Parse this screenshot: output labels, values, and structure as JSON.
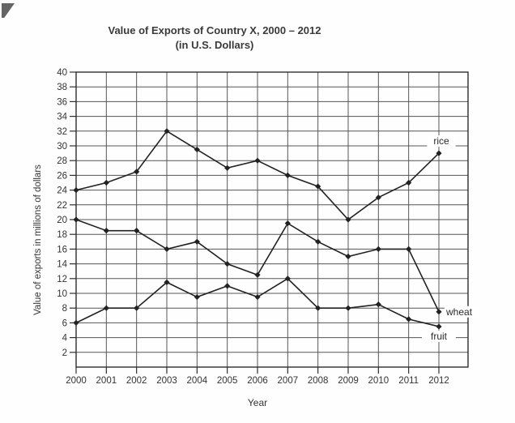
{
  "figure": {
    "title": "Value of Exports of Country X, 2000 – 2012",
    "subtitle": "(in U.S. Dollars)"
  },
  "chart_data": {
    "type": "line",
    "title": "Value of Exports of Country X, 2000 – 2012",
    "subtitle": "(in U.S. Dollars)",
    "xlabel": "Year",
    "ylabel": "Value of exports in millions of dollars",
    "ylim": [
      0,
      40
    ],
    "ytick_step": 2,
    "grid": true,
    "legend_position": "inline-labels",
    "x": [
      "2000",
      "2001",
      "2002",
      "2003",
      "2004",
      "2005",
      "2006",
      "2007",
      "2008",
      "2009",
      "2010",
      "2011",
      "2012"
    ],
    "series": [
      {
        "name": "rice",
        "values": [
          24,
          25,
          26.5,
          32,
          29.5,
          27,
          28,
          26,
          24.5,
          20,
          23,
          25,
          29
        ],
        "label": "rice",
        "label_anchor": "middle",
        "label_dx": 3,
        "label_dy": -15
      },
      {
        "name": "wheat",
        "values": [
          20,
          18.5,
          18.5,
          16,
          17,
          14,
          12.5,
          19.5,
          17,
          15,
          16,
          16,
          7.5
        ],
        "label": "wheat",
        "label_anchor": "start",
        "label_dx": 9,
        "label_dy": 0
      },
      {
        "name": "fruit",
        "values": [
          6,
          8,
          8,
          11.5,
          9.5,
          11,
          9.5,
          12,
          8,
          8,
          8.5,
          6.5,
          5.5
        ],
        "label": "fruit",
        "label_anchor": "middle",
        "label_dx": 0,
        "label_dy": 12
      }
    ],
    "colors": {
      "line": "#222222",
      "grid": "#555555",
      "border": "#2e2e2e",
      "text": "#333333"
    }
  }
}
